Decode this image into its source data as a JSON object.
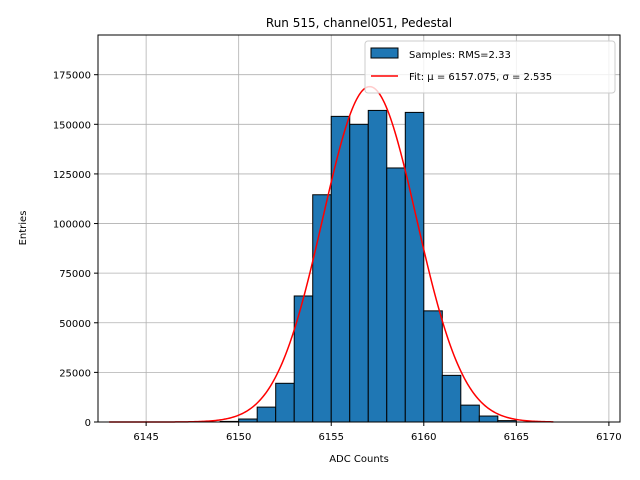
{
  "chart_data": {
    "type": "bar",
    "title": "Run 515, channel051, Pedestal",
    "xlabel": "ADC Counts",
    "ylabel": "Entries",
    "xlim": [
      6142.4,
      6170.6
    ],
    "ylim": [
      0,
      195000
    ],
    "xticks": [
      6145,
      6150,
      6155,
      6160,
      6165,
      6170
    ],
    "yticks": [
      0,
      25000,
      50000,
      75000,
      100000,
      125000,
      150000,
      175000
    ],
    "grid": true,
    "legend_position": "top-right",
    "bin_width": 1,
    "bins": [
      {
        "left": 6149,
        "value": 300
      },
      {
        "left": 6150,
        "value": 1500
      },
      {
        "left": 6151,
        "value": 7500
      },
      {
        "left": 6152,
        "value": 19500
      },
      {
        "left": 6153,
        "value": 63500
      },
      {
        "left": 6154,
        "value": 114500
      },
      {
        "left": 6155,
        "value": 154000
      },
      {
        "left": 6156,
        "value": 150000
      },
      {
        "left": 6157,
        "value": 157000
      },
      {
        "left": 6158,
        "value": 128000
      },
      {
        "left": 6159,
        "value": 156000
      },
      {
        "left": 6160,
        "value": 56000
      },
      {
        "left": 6161,
        "value": 23500
      },
      {
        "left": 6162,
        "value": 8500
      },
      {
        "left": 6163,
        "value": 3000
      },
      {
        "left": 6164,
        "value": 700
      }
    ],
    "fit": {
      "mu": 6157.075,
      "sigma": 2.535,
      "amplitude": 169000,
      "x_range": [
        6143,
        6167
      ]
    },
    "series": [
      {
        "name": "Samples: RMS=2.33",
        "kind": "bar",
        "color": "#1f77b4"
      },
      {
        "name": "Fit: μ = 6157.075, σ = 2.535",
        "kind": "line",
        "color": "#ff0000"
      }
    ]
  }
}
